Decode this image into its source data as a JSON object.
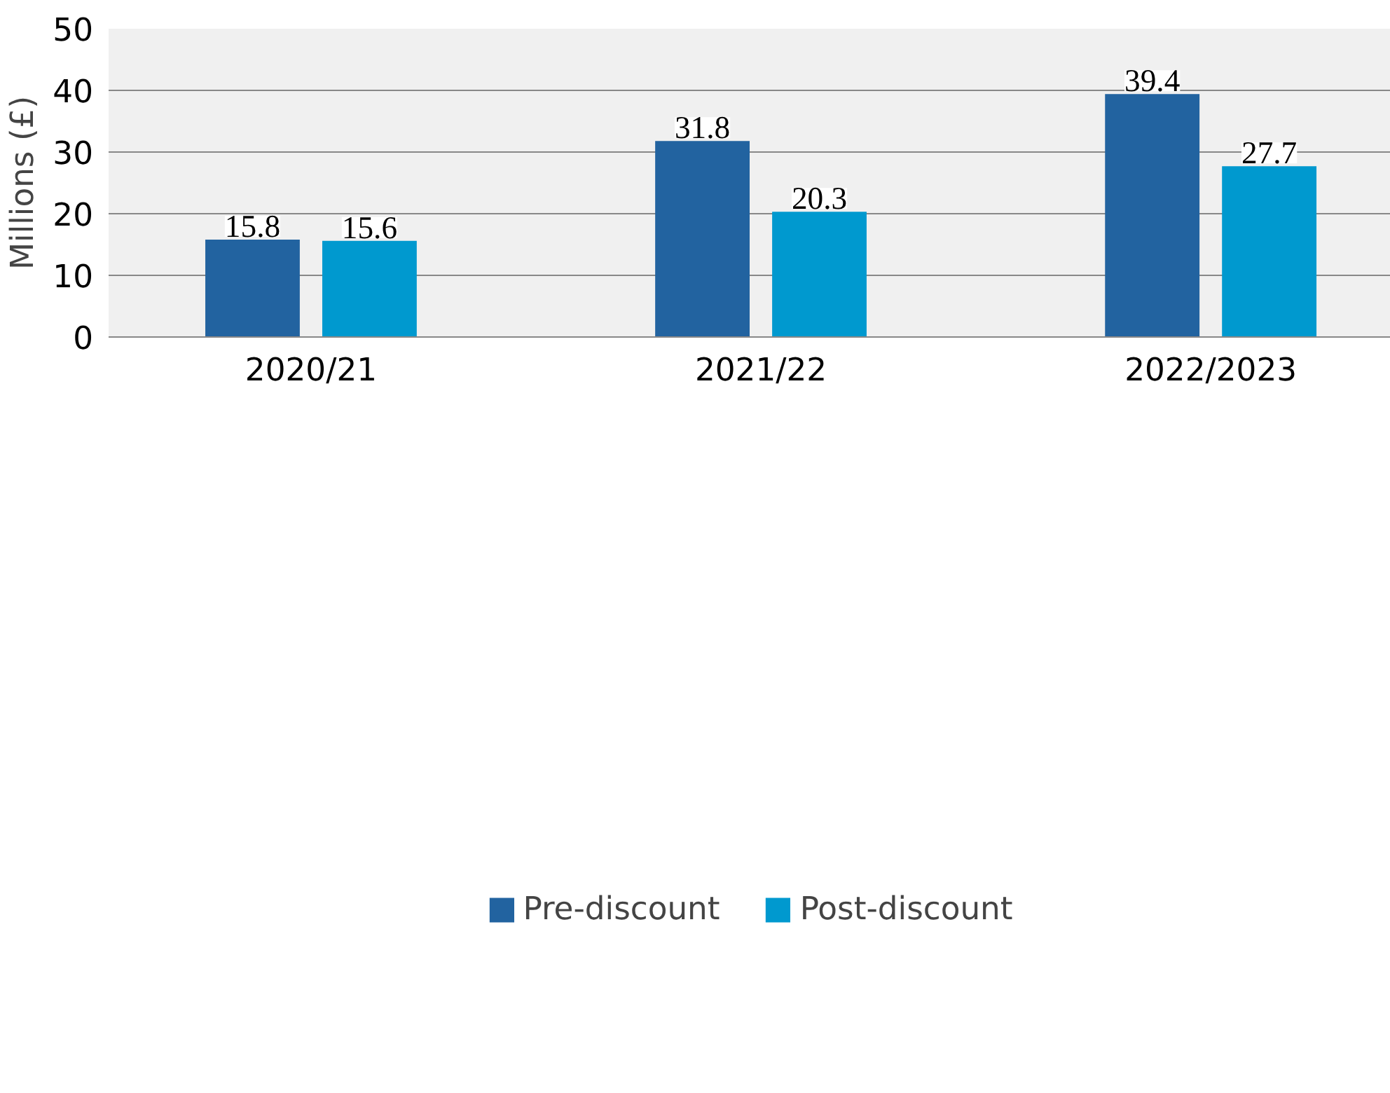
{
  "chart_data": {
    "type": "bar",
    "ylabel": "Millions (£)",
    "categories": [
      "2020/21",
      "2021/22",
      "2022/2023"
    ],
    "series": [
      {
        "name": "Pre-discount",
        "color": "#2263a0",
        "values": [
          15.8,
          31.8,
          39.4
        ]
      },
      {
        "name": "Post-discount",
        "color": "#0099cf",
        "values": [
          15.6,
          20.3,
          27.7
        ]
      }
    ],
    "ylim": [
      0,
      50
    ],
    "yticks": [
      0,
      10,
      20,
      30,
      40,
      50
    ],
    "grid": "y",
    "legend": "bottom",
    "data_labels": true
  }
}
